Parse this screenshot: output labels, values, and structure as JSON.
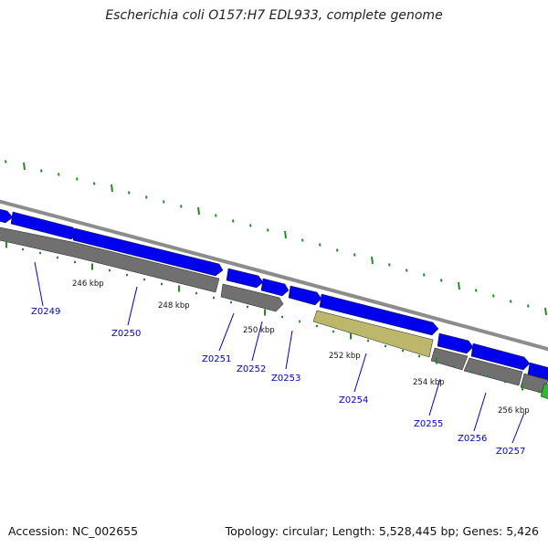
{
  "title": "Escherichia coli O157:H7 EDL933, complete genome",
  "footer": {
    "accession": "Accession: NC_002655",
    "topology": "Topology: circular; Length: 5,528,445 bp; Genes: 5,426"
  },
  "colors": {
    "forward_cds": "#0000ee",
    "reverse_cds": "#707070",
    "highlight_cds": "#bdb76b",
    "backbone": "#8c8c8c",
    "tick": "#228b22",
    "next_feature": "#2db82d",
    "gene_label": "#0000cc"
  },
  "ticks": [
    {
      "label": "246 kbp"
    },
    {
      "label": "248 kbp"
    },
    {
      "label": "250 kbp"
    },
    {
      "label": "252 kbp"
    },
    {
      "label": "254 kbp"
    },
    {
      "label": "256 kbp"
    }
  ],
  "genes": [
    {
      "name": "Z0249"
    },
    {
      "name": "Z0250"
    },
    {
      "name": "Z0251"
    },
    {
      "name": "Z0252"
    },
    {
      "name": "Z0253"
    },
    {
      "name": "Z0254"
    },
    {
      "name": "Z0255"
    },
    {
      "name": "Z0256"
    },
    {
      "name": "Z0257"
    }
  ]
}
